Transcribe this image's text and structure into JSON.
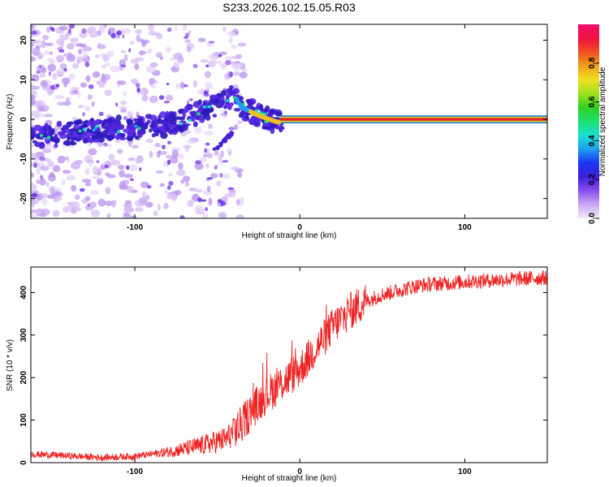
{
  "title": "S233.2026.102.15.05.R03",
  "colors": {
    "background": "#ffffff",
    "snr_line": "#ee2222",
    "ridge": "#e91e2e",
    "ridge_outer": "#2f7ff0",
    "ridge_mid": "#9bd22e",
    "ridge_core": "#f0c020"
  },
  "chart_data": [
    {
      "type": "heatmap",
      "name": "spectrogram",
      "xlabel": "Height of straight line (km)",
      "ylabel": "Frequency (Hz)",
      "xlim": [
        -163,
        150
      ],
      "ylim": [
        -25,
        24
      ],
      "x_ticks": [
        -100,
        0,
        100
      ],
      "x_tick_labels": [
        "-100",
        "0",
        "100"
      ],
      "y_ticks": [
        -20,
        -10,
        0,
        10,
        20
      ],
      "y_tick_labels": [
        "-20",
        "-10",
        "0",
        "10",
        "20"
      ],
      "description_points": {
        "ridge_x": [
          -160,
          -150,
          -140,
          -120,
          -100,
          -80,
          -70,
          -60,
          -50,
          -40,
          -35,
          -25,
          -15,
          -10,
          0,
          10,
          50,
          100,
          150
        ],
        "ridge_freq": [
          -4.5,
          -4,
          -3.5,
          -2.5,
          -2,
          -1.5,
          0,
          2,
          4,
          6,
          3,
          1,
          -0.5,
          -1,
          0,
          0,
          0,
          0,
          0
        ]
      },
      "colorbar": {
        "label": "Normalized spectral amplitude",
        "range": [
          0,
          1
        ],
        "ticks": [
          0.0,
          0.2,
          0.4,
          0.6,
          0.8
        ],
        "tick_labels": [
          "0.0",
          "0.2",
          "0.4",
          "0.6",
          "0.8"
        ],
        "colors": [
          "#f5eafc",
          "#c9a9f2",
          "#8a4df0",
          "#3d1fd8",
          "#1a35f0",
          "#1ea0f0",
          "#19e0d0",
          "#1ee070",
          "#30d020",
          "#a0e020",
          "#f0e020",
          "#f0a020",
          "#f05020",
          "#f01040",
          "#f0106a"
        ]
      }
    },
    {
      "type": "line",
      "name": "snr",
      "xlabel": "Height of straight line (km)",
      "ylabel": "SNR (10 * v/v)",
      "xlim": [
        -163,
        150
      ],
      "ylim": [
        0,
        460
      ],
      "x_ticks": [
        -100,
        0,
        100
      ],
      "x_tick_labels": [
        "-100",
        "0",
        "100"
      ],
      "y_ticks": [
        0,
        100,
        200,
        300,
        400
      ],
      "y_tick_labels": [
        "0",
        "100",
        "200",
        "300",
        "400"
      ],
      "trend_x": [
        -163,
        -150,
        -120,
        -100,
        -80,
        -60,
        -45,
        -35,
        -30,
        -20,
        -10,
        0,
        10,
        20,
        30,
        40,
        50,
        60,
        70,
        80,
        90,
        100,
        120,
        150
      ],
      "trend_y": [
        20,
        18,
        12,
        15,
        25,
        40,
        55,
        90,
        120,
        160,
        190,
        220,
        270,
        320,
        355,
        380,
        395,
        405,
        415,
        420,
        422,
        425,
        430,
        435
      ]
    }
  ]
}
